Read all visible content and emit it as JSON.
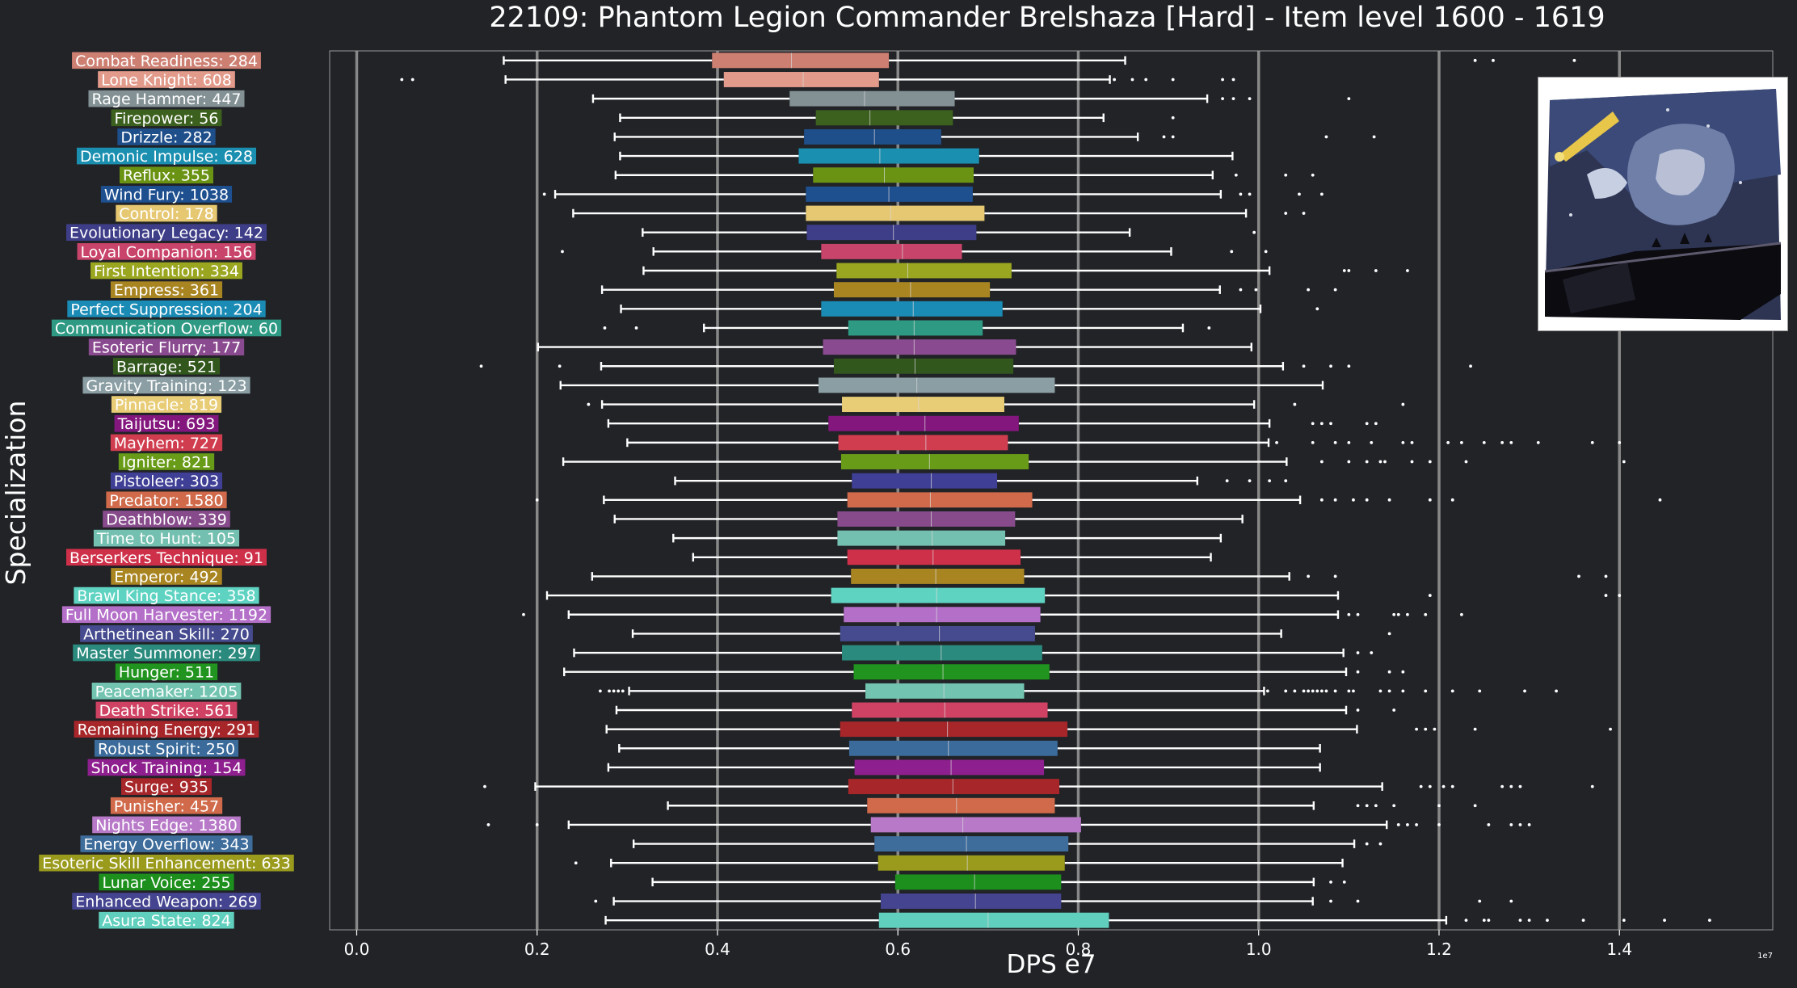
{
  "chart_data": {
    "type": "box",
    "orientation": "horizontal",
    "title": "22109: Phantom Legion Commander Brelshaza [Hard] - Item level 1600 - 1619",
    "xlabel": "DPS e7",
    "ylabel": "Specialization",
    "x_scale_note": "1e7",
    "xlim": [
      -0.03,
      1.57
    ],
    "xticks": [
      0.0,
      0.2,
      0.4,
      0.6,
      0.8,
      1.0,
      1.2,
      1.4
    ],
    "xtick_labels": [
      "0.0",
      "0.2",
      "0.4",
      "0.6",
      "0.8",
      "1.0",
      "1.2",
      "1.4"
    ],
    "grid": "vertical",
    "series": [
      {
        "label": "Combat Readiness: 284",
        "color": "#cd7f72",
        "wlo": 0.163,
        "q1": 0.394,
        "med": 0.482,
        "q3": 0.59,
        "whi": 0.852,
        "outliers": [
          1.24,
          1.26,
          1.35
        ]
      },
      {
        "label": "Lone Knight: 608",
        "color": "#e29a8a",
        "wlo": 0.165,
        "q1": 0.407,
        "med": 0.495,
        "q3": 0.579,
        "whi": 0.835,
        "outliers": [
          0.05,
          0.062,
          0.84,
          0.86,
          0.875,
          0.905,
          0.96,
          0.972
        ]
      },
      {
        "label": "Rage Hammer: 447",
        "color": "#839195",
        "wlo": 0.262,
        "q1": 0.48,
        "med": 0.563,
        "q3": 0.663,
        "whi": 0.943,
        "outliers": [
          0.96,
          0.972,
          0.99,
          1.1
        ]
      },
      {
        "label": "Firepower: 56",
        "color": "#3c601e",
        "wlo": 0.292,
        "q1": 0.509,
        "med": 0.569,
        "q3": 0.661,
        "whi": 0.828,
        "outliers": [
          0.905
        ]
      },
      {
        "label": "Drizzle: 282",
        "color": "#1f4f8a",
        "wlo": 0.286,
        "q1": 0.496,
        "med": 0.574,
        "q3": 0.648,
        "whi": 0.866,
        "outliers": [
          0.895,
          0.905,
          1.075,
          1.128
        ]
      },
      {
        "label": "Demonic Impulse: 628",
        "color": "#1a8fb0",
        "wlo": 0.292,
        "q1": 0.49,
        "med": 0.58,
        "q3": 0.69,
        "whi": 0.971,
        "outliers": []
      },
      {
        "label": "Reflux: 355",
        "color": "#6a9314",
        "wlo": 0.287,
        "q1": 0.506,
        "med": 0.585,
        "q3": 0.684,
        "whi": 0.949,
        "outliers": [
          0.975,
          1.03,
          1.06
        ]
      },
      {
        "label": "Wind Fury: 1038",
        "color": "#1e4f8f",
        "wlo": 0.22,
        "q1": 0.498,
        "med": 0.59,
        "q3": 0.683,
        "whi": 0.958,
        "outliers": [
          0.208,
          0.98,
          0.99,
          1.045,
          1.07
        ]
      },
      {
        "label": "Control: 178",
        "color": "#e6c873",
        "wlo": 0.24,
        "q1": 0.498,
        "med": 0.592,
        "q3": 0.696,
        "whi": 0.986,
        "outliers": [
          1.03,
          1.05
        ]
      },
      {
        "label": "Evolutionary Legacy: 142",
        "color": "#3e3d88",
        "wlo": 0.317,
        "q1": 0.499,
        "med": 0.595,
        "q3": 0.687,
        "whi": 0.857,
        "outliers": [
          0.995
        ]
      },
      {
        "label": "Loyal Companion: 156",
        "color": "#c9446a",
        "wlo": 0.329,
        "q1": 0.515,
        "med": 0.605,
        "q3": 0.671,
        "whi": 0.903,
        "outliers": [
          0.228,
          0.97,
          1.008
        ]
      },
      {
        "label": "First Intention: 334",
        "color": "#9aa61f",
        "wlo": 0.318,
        "q1": 0.532,
        "med": 0.611,
        "q3": 0.726,
        "whi": 1.012,
        "outliers": [
          1.095,
          1.1,
          1.13,
          1.165
        ]
      },
      {
        "label": "Empress: 361",
        "color": "#a98522",
        "wlo": 0.272,
        "q1": 0.529,
        "med": 0.614,
        "q3": 0.702,
        "whi": 0.957,
        "outliers": [
          0.98,
          0.997,
          1.055,
          1.085
        ]
      },
      {
        "label": "Perfect Suppression: 204",
        "color": "#1a8bb5",
        "wlo": 0.293,
        "q1": 0.515,
        "med": 0.617,
        "q3": 0.716,
        "whi": 1.002,
        "outliers": [
          1.065
        ]
      },
      {
        "label": "Communication Overflow: 60",
        "color": "#2f9a84",
        "wlo": 0.385,
        "q1": 0.545,
        "med": 0.618,
        "q3": 0.694,
        "whi": 0.916,
        "outliers": [
          0.275,
          0.31,
          0.945
        ]
      },
      {
        "label": "Esoteric Flurry: 177",
        "color": "#8a4a8f",
        "wlo": 0.201,
        "q1": 0.517,
        "med": 0.618,
        "q3": 0.731,
        "whi": 0.992,
        "outliers": []
      },
      {
        "label": "Barrage: 521",
        "color": "#31571d",
        "wlo": 0.271,
        "q1": 0.529,
        "med": 0.619,
        "q3": 0.728,
        "whi": 1.027,
        "outliers": [
          0.138,
          0.225,
          1.05,
          1.08,
          1.1,
          1.235
        ]
      },
      {
        "label": "Gravity Training: 123",
        "color": "#8a9ea3",
        "wlo": 0.226,
        "q1": 0.512,
        "med": 0.621,
        "q3": 0.774,
        "whi": 1.071,
        "outliers": []
      },
      {
        "label": "Pinnacle: 819",
        "color": "#e8cc76",
        "wlo": 0.272,
        "q1": 0.538,
        "med": 0.623,
        "q3": 0.718,
        "whi": 0.995,
        "outliers": [
          0.257,
          1.04,
          1.16
        ]
      },
      {
        "label": "Taijutsu: 693",
        "color": "#84177e",
        "wlo": 0.279,
        "q1": 0.523,
        "med": 0.63,
        "q3": 0.734,
        "whi": 1.012,
        "outliers": [
          1.06,
          1.07,
          1.08,
          1.12,
          1.13
        ]
      },
      {
        "label": "Mayhem: 727",
        "color": "#d03d4f",
        "wlo": 0.3,
        "q1": 0.534,
        "med": 0.631,
        "q3": 0.722,
        "whi": 1.011,
        "outliers": [
          1.02,
          1.06,
          1.085,
          1.1,
          1.125,
          1.16,
          1.17,
          1.21,
          1.225,
          1.25,
          1.27,
          1.28,
          1.31,
          1.37,
          1.4
        ]
      },
      {
        "label": "Igniter: 821",
        "color": "#689b17",
        "wlo": 0.229,
        "q1": 0.537,
        "med": 0.635,
        "q3": 0.745,
        "whi": 1.031,
        "outliers": [
          1.07,
          1.1,
          1.12,
          1.135,
          1.14,
          1.17,
          1.19,
          1.23,
          1.405
        ]
      },
      {
        "label": "Pistoleer: 303",
        "color": "#3f3f96",
        "wlo": 0.353,
        "q1": 0.549,
        "med": 0.637,
        "q3": 0.71,
        "whi": 0.932,
        "outliers": [
          0.965,
          0.99,
          1.012,
          1.03
        ]
      },
      {
        "label": "Predator: 1580",
        "color": "#d06a4a",
        "wlo": 0.274,
        "q1": 0.544,
        "med": 0.636,
        "q3": 0.749,
        "whi": 1.046,
        "outliers": [
          0.2,
          1.07,
          1.085,
          1.105,
          1.12,
          1.145,
          1.19,
          1.215,
          1.445
        ]
      },
      {
        "label": "Deathblow: 339",
        "color": "#874b8c",
        "wlo": 0.286,
        "q1": 0.533,
        "med": 0.637,
        "q3": 0.73,
        "whi": 0.982,
        "outliers": []
      },
      {
        "label": "Time to Hunt: 105",
        "color": "#74c0b0",
        "wlo": 0.351,
        "q1": 0.533,
        "med": 0.638,
        "q3": 0.719,
        "whi": 0.958,
        "outliers": []
      },
      {
        "label": "Berserkers Technique: 91",
        "color": "#cf3049",
        "wlo": 0.373,
        "q1": 0.544,
        "med": 0.639,
        "q3": 0.736,
        "whi": 0.947,
        "outliers": []
      },
      {
        "label": "Emperor: 492",
        "color": "#a98522",
        "wlo": 0.261,
        "q1": 0.548,
        "med": 0.642,
        "q3": 0.74,
        "whi": 1.034,
        "outliers": [
          1.055,
          1.085,
          1.355,
          1.385
        ]
      },
      {
        "label": "Brawl King Stance: 358",
        "color": "#5fd3c2",
        "wlo": 0.211,
        "q1": 0.526,
        "med": 0.643,
        "q3": 0.763,
        "whi": 1.088,
        "outliers": [
          1.19,
          1.385,
          1.4
        ]
      },
      {
        "label": "Full Moon Harvester: 1192",
        "color": "#b470c8",
        "wlo": 0.235,
        "q1": 0.54,
        "med": 0.643,
        "q3": 0.758,
        "whi": 1.088,
        "outliers": [
          0.185,
          1.1,
          1.11,
          1.15,
          1.155,
          1.165,
          1.185,
          1.225
        ]
      },
      {
        "label": "Arthetinean Skill: 270",
        "color": "#454b8e",
        "wlo": 0.306,
        "q1": 0.536,
        "med": 0.646,
        "q3": 0.752,
        "whi": 1.025,
        "outliers": [
          1.145
        ]
      },
      {
        "label": "Master Summoner: 297",
        "color": "#2a8a7d",
        "wlo": 0.241,
        "q1": 0.538,
        "med": 0.648,
        "q3": 0.76,
        "whi": 1.094,
        "outliers": [
          1.11,
          1.125
        ]
      },
      {
        "label": "Hunger: 511",
        "color": "#20941e",
        "wlo": 0.23,
        "q1": 0.551,
        "med": 0.65,
        "q3": 0.768,
        "whi": 1.097,
        "outliers": [
          1.11,
          1.145,
          1.16
        ]
      },
      {
        "label": "Peacemaker: 1205",
        "color": "#72c4b1",
        "wlo": 0.302,
        "q1": 0.564,
        "med": 0.651,
        "q3": 0.74,
        "whi": 1.006,
        "outliers": [
          0.27,
          0.28,
          0.285,
          0.29,
          0.295,
          1.01,
          1.03,
          1.04,
          1.05,
          1.055,
          1.06,
          1.065,
          1.07,
          1.075,
          1.085,
          1.1,
          1.105,
          1.135,
          1.145,
          1.16,
          1.185,
          1.215,
          1.245,
          1.295,
          1.33
        ]
      },
      {
        "label": "Death Strike: 561",
        "color": "#d04263",
        "wlo": 0.288,
        "q1": 0.549,
        "med": 0.652,
        "q3": 0.766,
        "whi": 1.097,
        "outliers": [
          1.11,
          1.15
        ]
      },
      {
        "label": "Remaining Energy: 291",
        "color": "#a7262a",
        "wlo": 0.277,
        "q1": 0.536,
        "med": 0.655,
        "q3": 0.788,
        "whi": 1.109,
        "outliers": [
          1.175,
          1.185,
          1.195,
          1.24,
          1.39
        ]
      },
      {
        "label": "Robust Spirit: 250",
        "color": "#3a6b9b",
        "wlo": 0.291,
        "q1": 0.546,
        "med": 0.656,
        "q3": 0.777,
        "whi": 1.068,
        "outliers": []
      },
      {
        "label": "Shock Training: 154",
        "color": "#8e1f8e",
        "wlo": 0.279,
        "q1": 0.552,
        "med": 0.659,
        "q3": 0.762,
        "whi": 1.068,
        "outliers": []
      },
      {
        "label": "Surge: 935",
        "color": "#a7262a",
        "wlo": 0.198,
        "q1": 0.545,
        "med": 0.661,
        "q3": 0.779,
        "whi": 1.137,
        "outliers": [
          0.142,
          1.18,
          1.19,
          1.205,
          1.215,
          1.27,
          1.28,
          1.29,
          1.37
        ]
      },
      {
        "label": "Punisher: 457",
        "color": "#d06a4a",
        "wlo": 0.345,
        "q1": 0.566,
        "med": 0.665,
        "q3": 0.774,
        "whi": 1.061,
        "outliers": [
          1.11,
          1.12,
          1.13,
          1.15,
          1.2,
          1.24
        ]
      },
      {
        "label": "Nights Edge: 1380",
        "color": "#b87ac8",
        "wlo": 0.235,
        "q1": 0.57,
        "med": 0.672,
        "q3": 0.803,
        "whi": 1.142,
        "outliers": [
          0.146,
          0.2,
          1.155,
          1.165,
          1.175,
          1.2,
          1.255,
          1.28,
          1.29,
          1.3
        ]
      },
      {
        "label": "Energy Overflow: 343",
        "color": "#3e6c9b",
        "wlo": 0.307,
        "q1": 0.574,
        "med": 0.676,
        "q3": 0.789,
        "whi": 1.106,
        "outliers": [
          1.12,
          1.135
        ]
      },
      {
        "label": "Esoteric Skill Enhancement: 633",
        "color": "#9a9a1d",
        "wlo": 0.282,
        "q1": 0.578,
        "med": 0.677,
        "q3": 0.785,
        "whi": 1.093,
        "outliers": [
          0.243
        ]
      },
      {
        "label": "Lunar Voice: 255",
        "color": "#1c8f1d",
        "wlo": 0.328,
        "q1": 0.597,
        "med": 0.685,
        "q3": 0.781,
        "whi": 1.061,
        "outliers": [
          1.08,
          1.095
        ]
      },
      {
        "label": "Enhanced Weapon: 269",
        "color": "#444490",
        "wlo": 0.285,
        "q1": 0.581,
        "med": 0.686,
        "q3": 0.781,
        "whi": 1.06,
        "outliers": [
          0.265,
          1.08,
          1.11,
          1.245,
          1.28
        ]
      },
      {
        "label": "Asura State: 824",
        "color": "#60cfbe",
        "wlo": 0.276,
        "q1": 0.579,
        "med": 0.7,
        "q3": 0.834,
        "whi": 1.208,
        "outliers": [
          1.23,
          1.25,
          1.255,
          1.29,
          1.3,
          1.32,
          1.36,
          1.405,
          1.45,
          1.5
        ]
      }
    ]
  }
}
